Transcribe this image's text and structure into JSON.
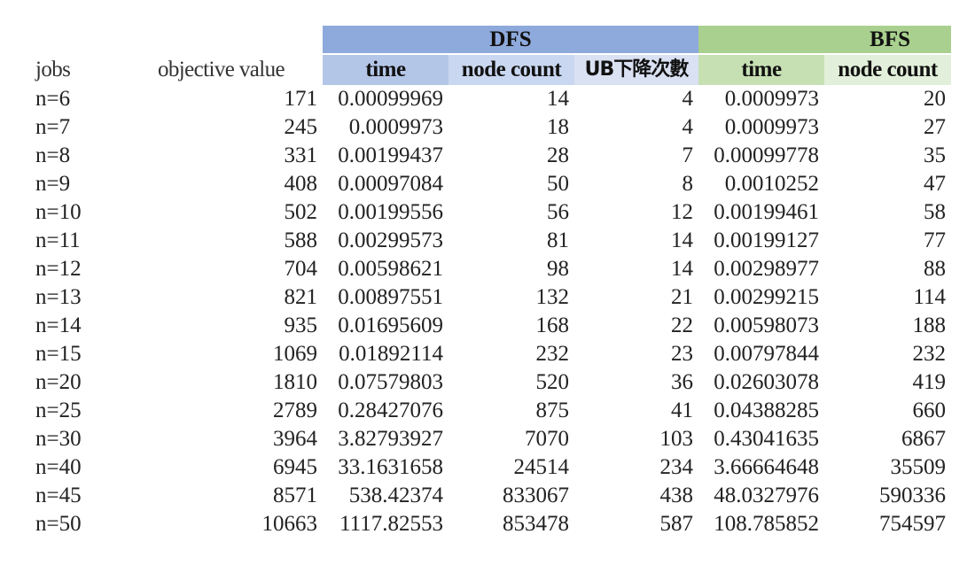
{
  "group_headers": {
    "dfs": {
      "label": "DFS",
      "color": "#8EA9DB"
    },
    "bfs": {
      "label": "BFS",
      "color": "#A9D08E"
    }
  },
  "column_headers": {
    "jobs": "jobs",
    "objective": "objective value",
    "dfs_time": "time",
    "dfs_node_count": "node count",
    "dfs_ub": "UB下降次數",
    "bfs_time": "time",
    "bfs_node_count": "node count"
  },
  "colors": {
    "dfs_time_bg": "#B4C6E7",
    "dfs_node_bg": "#C9D7F0",
    "dfs_ub_bg": "#D9E1F2",
    "bfs_time_bg": "#C6E0B4",
    "bfs_node_bg": "#E2EFDA"
  },
  "rows": [
    [
      "n=6",
      "171",
      "0.00099969",
      "14",
      "4",
      "0.0009973",
      "20"
    ],
    [
      "n=7",
      "245",
      "0.0009973",
      "18",
      "4",
      "0.0009973",
      "27"
    ],
    [
      "n=8",
      "331",
      "0.00199437",
      "28",
      "7",
      "0.00099778",
      "35"
    ],
    [
      "n=9",
      "408",
      "0.00097084",
      "50",
      "8",
      "0.0010252",
      "47"
    ],
    [
      "n=10",
      "502",
      "0.00199556",
      "56",
      "12",
      "0.00199461",
      "58"
    ],
    [
      "n=11",
      "588",
      "0.00299573",
      "81",
      "14",
      "0.00199127",
      "77"
    ],
    [
      "n=12",
      "704",
      "0.00598621",
      "98",
      "14",
      "0.00298977",
      "88"
    ],
    [
      "n=13",
      "821",
      "0.00897551",
      "132",
      "21",
      "0.00299215",
      "114"
    ],
    [
      "n=14",
      "935",
      "0.01695609",
      "168",
      "22",
      "0.00598073",
      "188"
    ],
    [
      "n=15",
      "1069",
      "0.01892114",
      "232",
      "23",
      "0.00797844",
      "232"
    ],
    [
      "n=20",
      "1810",
      "0.07579803",
      "520",
      "36",
      "0.02603078",
      "419"
    ],
    [
      "n=25",
      "2789",
      "0.28427076",
      "875",
      "41",
      "0.04388285",
      "660"
    ],
    [
      "n=30",
      "3964",
      "3.82793927",
      "7070",
      "103",
      "0.43041635",
      "6867"
    ],
    [
      "n=40",
      "6945",
      "33.1631658",
      "24514",
      "234",
      "3.66664648",
      "35509"
    ],
    [
      "n=45",
      "8571",
      "538.42374",
      "833067",
      "438",
      "48.0327976",
      "590336"
    ],
    [
      "n=50",
      "10663",
      "1117.82553",
      "853478",
      "587",
      "108.785852",
      "754597"
    ]
  ]
}
